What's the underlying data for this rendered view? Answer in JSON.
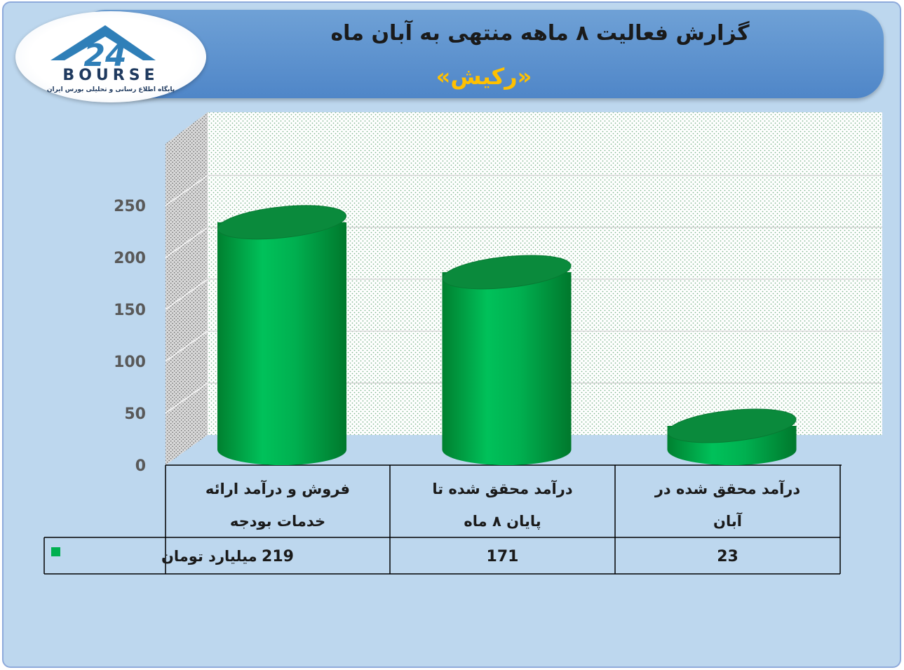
{
  "header": {
    "title": "گزارش فعالیت ۸ ماهه منتهی به آبان ماه",
    "subtitle": "«رکیش»"
  },
  "logo": {
    "mark": "24",
    "name": "BOURSE",
    "tagline": "پایگاه اطلاع رسانی و تحلیلی بورس ایران"
  },
  "colors": {
    "bar": "#00b050",
    "bar_dark": "#0a8a3c",
    "header": "#5b8fd0",
    "title_accent": "#ffc000",
    "background": "#bdd7ee"
  },
  "chart_data": {
    "type": "bar",
    "style": "3d-cylinder",
    "categories": [
      [
        "فروش و درآمد ارائه",
        "خدمات بودجه"
      ],
      [
        "درآمد محقق شده تا",
        "پایان ۸ ماه"
      ],
      [
        "درآمد محقق شده در",
        "آبان"
      ]
    ],
    "series": [
      {
        "name": "میلیارد تومان",
        "values": [
          219,
          171,
          23
        ]
      }
    ],
    "yticks": [
      0,
      50,
      100,
      150,
      200,
      250
    ],
    "ylim": [
      0,
      250
    ],
    "grid": true,
    "legend": "data-table",
    "data_table": true
  }
}
